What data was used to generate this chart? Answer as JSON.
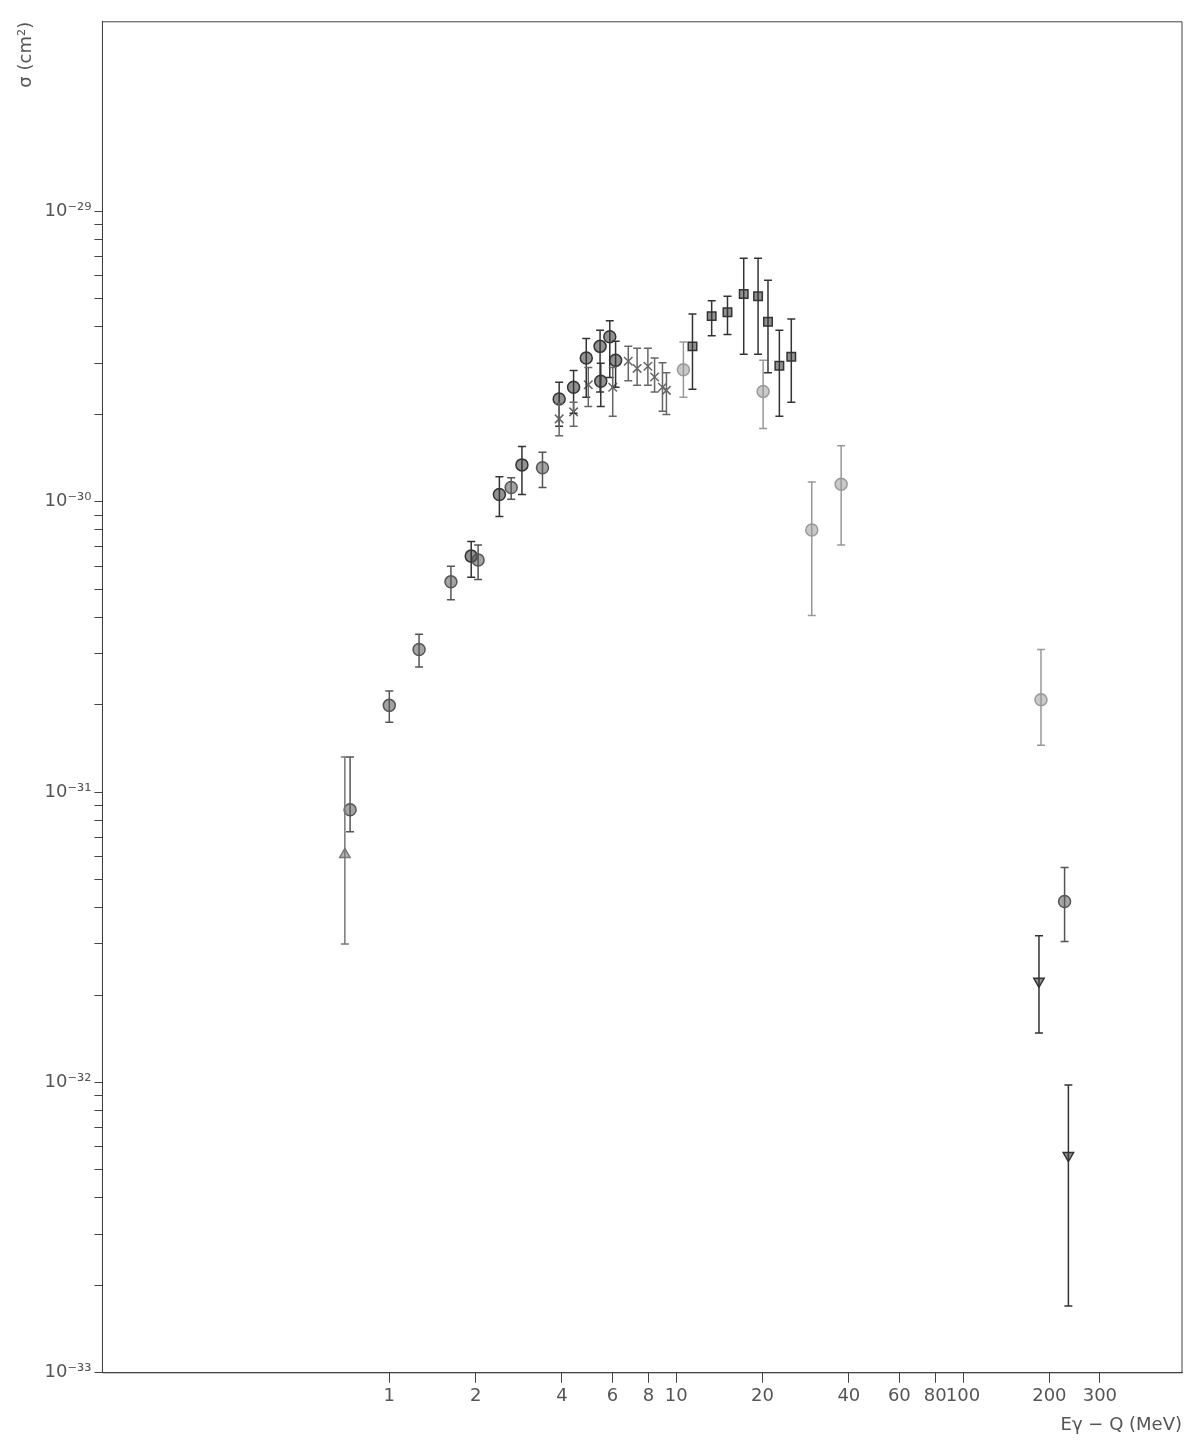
{
  "chart_data": {
    "type": "scatter",
    "xlabel": "Eγ − Q (MeV)",
    "ylabel": "σ (cm²)",
    "log": "xy",
    "grid": false,
    "legend": false,
    "xlim": [
      0.1,
      580
    ],
    "ylim": [
      1e-33,
      4.5e-29
    ],
    "xticks": [
      1,
      2,
      4,
      6,
      8,
      10,
      20,
      40,
      60,
      80,
      100,
      200,
      300
    ],
    "yticks": [
      {
        "value": 1e-33,
        "label": "10⁻³³"
      },
      {
        "value": 2e-33,
        "label": null
      },
      {
        "value": 3e-33,
        "label": null
      },
      {
        "value": 4e-33,
        "label": null
      },
      {
        "value": 5e-33,
        "label": null
      },
      {
        "value": 6e-33,
        "label": null
      },
      {
        "value": 7e-33,
        "label": null
      },
      {
        "value": 8e-33,
        "label": null
      },
      {
        "value": 9e-33,
        "label": null
      },
      {
        "value": 1e-32,
        "label": "10⁻³²"
      },
      {
        "value": 2e-32,
        "label": null
      },
      {
        "value": 3e-32,
        "label": null
      },
      {
        "value": 4e-32,
        "label": null
      },
      {
        "value": 5e-32,
        "label": null
      },
      {
        "value": 6e-32,
        "label": null
      },
      {
        "value": 7e-32,
        "label": null
      },
      {
        "value": 8e-32,
        "label": null
      },
      {
        "value": 9e-32,
        "label": null
      },
      {
        "value": 1e-31,
        "label": "10⁻³¹"
      },
      {
        "value": 2e-31,
        "label": null
      },
      {
        "value": 3e-31,
        "label": null
      },
      {
        "value": 4e-31,
        "label": null
      },
      {
        "value": 5e-31,
        "label": null
      },
      {
        "value": 6e-31,
        "label": null
      },
      {
        "value": 7e-31,
        "label": null
      },
      {
        "value": 8e-31,
        "label": null
      },
      {
        "value": 9e-31,
        "label": null
      },
      {
        "value": 1e-30,
        "label": "10⁻³⁰"
      },
      {
        "value": 2e-30,
        "label": null
      },
      {
        "value": 3e-30,
        "label": null
      },
      {
        "value": 4e-30,
        "label": null
      },
      {
        "value": 5e-30,
        "label": null
      },
      {
        "value": 6e-30,
        "label": null
      },
      {
        "value": 7e-30,
        "label": null
      },
      {
        "value": 8e-30,
        "label": null
      },
      {
        "value": 9e-30,
        "label": null
      },
      {
        "value": 1e-29,
        "label": "10⁻²⁹"
      }
    ],
    "series": [
      {
        "color": "#555555",
        "marker": "circle",
        "x": [
          0.73,
          1.0,
          1.27,
          1.64,
          2.04,
          2.66,
          3.42,
          226
        ],
        "values": [
          8.7e-32,
          1.99e-31,
          3.1e-31,
          5.3e-31,
          6.3e-31,
          1.12e-30,
          1.31e-30,
          4.2e-32
        ],
        "errors": [
          [
            7.3e-32,
            1.32e-31
          ],
          [
            1.74e-31,
            2.23e-31
          ],
          [
            2.7e-31,
            3.5e-31
          ],
          [
            4.6e-31,
            6e-31
          ],
          [
            5.4e-31,
            7.1e-31
          ],
          [
            1.02e-30,
            1.21e-30
          ],
          [
            1.12e-30,
            1.48e-30
          ],
          [
            3.06e-32,
            5.5e-32
          ]
        ]
      },
      {
        "color": "#333333",
        "marker": "circle",
        "x": [
          1.93,
          2.42,
          2.9,
          3.91,
          4.39,
          4.86,
          5.43,
          5.87,
          6.15,
          5.46
        ],
        "values": [
          6.5e-31,
          1.06e-30,
          1.34e-30,
          2.26e-30,
          2.48e-30,
          3.13e-30,
          3.43e-30,
          3.7e-30,
          3.07e-30,
          2.6e-30
        ],
        "errors": [
          [
            5.5e-31,
            7.3e-31
          ],
          [
            8.9e-31,
            1.22e-30
          ],
          [
            1.06e-30,
            1.55e-30
          ],
          [
            1.82e-30,
            2.58e-30
          ],
          [
            2.02e-30,
            2.83e-30
          ],
          [
            2.29e-30,
            3.65e-30
          ],
          [
            2.39e-30,
            3.9e-30
          ],
          [
            2.68e-30,
            4.2e-30
          ],
          [
            2.48e-30,
            3.57e-30
          ],
          [
            2.13e-30,
            3e-30
          ]
        ]
      },
      {
        "color": "#999999",
        "marker": "circle",
        "x": [
          10.6,
          20.1,
          29.7,
          37.6,
          187
        ],
        "values": [
          2.85e-30,
          2.4e-30,
          8e-31,
          1.15e-30,
          2.08e-31
        ],
        "errors": [
          [
            2.29e-30,
            3.55e-30
          ],
          [
            1.79e-30,
            3.07e-30
          ],
          [
            4.06e-31,
            1.17e-30
          ],
          [
            7.1e-31,
            1.56e-30
          ],
          [
            1.45e-31,
            3.1e-31
          ]
        ]
      },
      {
        "color": "#333333",
        "marker": "square",
        "x": [
          11.4,
          13.3,
          15.1,
          17.2,
          19.3,
          20.9,
          22.9,
          25.2
        ],
        "values": [
          3.43e-30,
          4.36e-30,
          4.5e-30,
          5.2e-30,
          5.1e-30,
          4.17e-30,
          2.94e-30,
          3.16e-30
        ],
        "errors": [
          [
            2.44e-30,
            4.43e-30
          ],
          [
            3.73e-30,
            4.93e-30
          ],
          [
            3.77e-30,
            5.1e-30
          ],
          [
            3.22e-30,
            6.9e-30
          ],
          [
            3.22e-30,
            6.9e-30
          ],
          [
            2.78e-30,
            5.8e-30
          ],
          [
            1.97e-30,
            3.9e-30
          ],
          [
            2.2e-30,
            4.26e-30
          ]
        ]
      },
      {
        "color": "#666666",
        "marker": "cross",
        "x": [
          3.91,
          4.39,
          4.94,
          6.01,
          6.81,
          7.31,
          7.97,
          8.41,
          8.96,
          9.25
        ],
        "values": [
          1.93e-30,
          2.04e-30,
          2.53e-30,
          2.48e-30,
          3.05e-30,
          2.88e-30,
          2.93e-30,
          2.69e-30,
          2.48e-30,
          2.42e-30
        ],
        "errors": [
          [
            1.69e-30,
            2.18e-30
          ],
          [
            1.82e-30,
            2.2e-30
          ],
          [
            2.13e-30,
            2.9e-30
          ],
          [
            1.97e-30,
            2.9e-30
          ],
          [
            2.61e-30,
            3.43e-30
          ],
          [
            2.52e-30,
            3.38e-30
          ],
          [
            2.52e-30,
            3.38e-30
          ],
          [
            2.39e-30,
            3.13e-30
          ],
          [
            2.05e-30,
            3.01e-30
          ],
          [
            2e-30,
            2.78e-30
          ]
        ]
      },
      {
        "color": "#777777",
        "marker": "triangle",
        "x": [
          0.7
        ],
        "values": [
          6.1e-32
        ],
        "errors": [
          [
            3e-32,
            1.32e-31
          ]
        ]
      },
      {
        "color": "#333333",
        "marker": "triangle-down",
        "x": [
          184,
          233
        ],
        "values": [
          2.23e-32,
          5.6e-33
        ],
        "errors": [
          [
            1.48e-32,
            3.2e-32
          ],
          [
            1.7e-33,
            9.8e-33
          ]
        ]
      }
    ]
  }
}
